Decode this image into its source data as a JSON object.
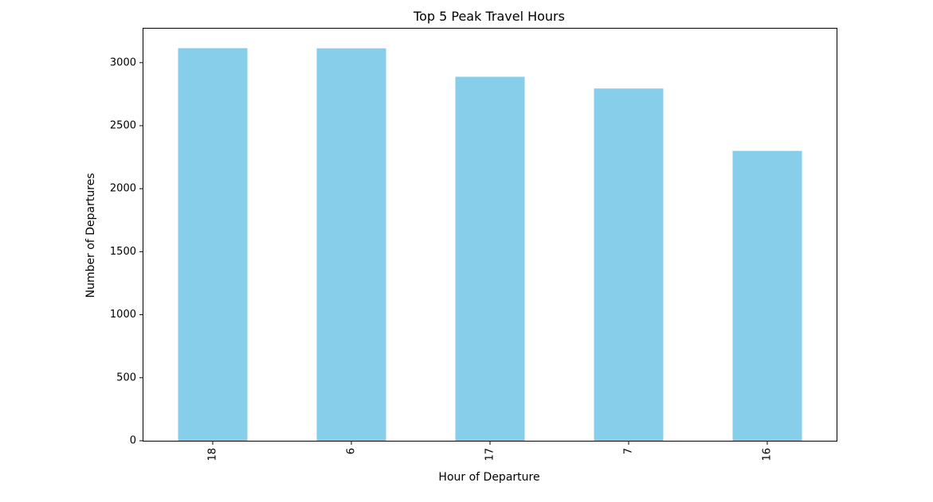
{
  "chart_data": {
    "type": "bar",
    "title": "Top 5 Peak Travel Hours",
    "xlabel": "Hour of Departure",
    "ylabel": "Number of Departures",
    "categories": [
      "18",
      "6",
      "17",
      "7",
      "16"
    ],
    "values": [
      3115,
      3114,
      2888,
      2795,
      2300
    ],
    "ylim": [
      0,
      3270
    ],
    "yticks": [
      0,
      500,
      1000,
      1500,
      2000,
      2500,
      3000
    ],
    "bar_color": "#87CEEB",
    "grid": false,
    "legend": "none",
    "xtick_rotation": 90
  }
}
